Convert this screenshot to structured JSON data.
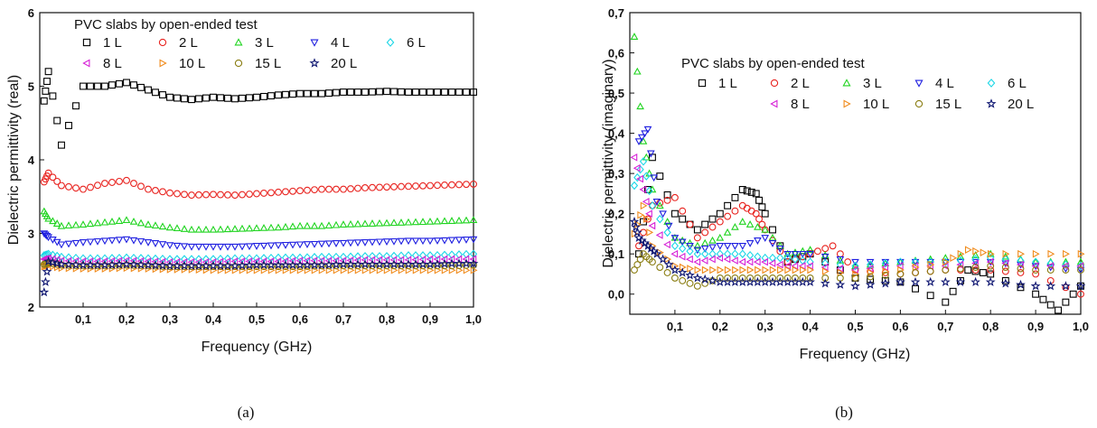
{
  "chart_data": [
    {
      "id": "a",
      "type": "scatter",
      "subfigure_label": "(a)",
      "xlabel": "Frequency (GHz)",
      "ylabel": "Dielectric permittivity (real)",
      "xlim": [
        0.0,
        1.0
      ],
      "ylim": [
        2,
        6
      ],
      "xticks": [
        "0,1",
        "0,2",
        "0,3",
        "0,4",
        "0,5",
        "0,6",
        "0,7",
        "0,8",
        "0,9",
        "1,0"
      ],
      "yticks": [
        "2",
        "3",
        "4",
        "5",
        "6"
      ],
      "legend_title": "PVC slabs by open-ended test",
      "legend_placement": "top-left",
      "series": [
        {
          "name": "1 L",
          "color": "#000000",
          "marker": "square",
          "x": [
            0.01,
            0.02,
            0.05,
            0.1,
            0.15,
            0.2,
            0.25,
            0.3,
            0.35,
            0.4,
            0.45,
            0.5,
            0.55,
            0.6,
            0.65,
            0.7,
            0.75,
            0.8,
            0.85,
            0.9,
            0.95,
            1.0
          ],
          "y": [
            4.8,
            5.2,
            4.2,
            5.0,
            5.0,
            5.05,
            4.95,
            4.85,
            4.82,
            4.85,
            4.83,
            4.85,
            4.88,
            4.9,
            4.9,
            4.92,
            4.92,
            4.93,
            4.92,
            4.92,
            4.92,
            4.92
          ]
        },
        {
          "name": "2 L",
          "color": "#e8231f",
          "marker": "circle",
          "x": [
            0.01,
            0.02,
            0.05,
            0.1,
            0.15,
            0.2,
            0.25,
            0.3,
            0.35,
            0.4,
            0.45,
            0.5,
            0.55,
            0.6,
            0.65,
            0.7,
            0.75,
            0.8,
            0.85,
            0.9,
            0.95,
            1.0
          ],
          "y": [
            3.7,
            3.82,
            3.65,
            3.6,
            3.68,
            3.72,
            3.6,
            3.55,
            3.52,
            3.53,
            3.52,
            3.54,
            3.56,
            3.58,
            3.6,
            3.6,
            3.62,
            3.63,
            3.64,
            3.65,
            3.66,
            3.67
          ]
        },
        {
          "name": "3 L",
          "color": "#1fd41f",
          "marker": "triangle-up",
          "x": [
            0.01,
            0.02,
            0.05,
            0.1,
            0.15,
            0.2,
            0.25,
            0.3,
            0.35,
            0.4,
            0.45,
            0.5,
            0.55,
            0.6,
            0.65,
            0.7,
            0.75,
            0.8,
            0.85,
            0.9,
            0.95,
            1.0
          ],
          "y": [
            3.3,
            3.2,
            3.1,
            3.12,
            3.15,
            3.18,
            3.12,
            3.08,
            3.05,
            3.05,
            3.06,
            3.07,
            3.08,
            3.1,
            3.1,
            3.12,
            3.13,
            3.14,
            3.15,
            3.16,
            3.17,
            3.18
          ]
        },
        {
          "name": "4 L",
          "color": "#1e1ee0",
          "marker": "triangle-down",
          "x": [
            0.01,
            0.02,
            0.05,
            0.1,
            0.15,
            0.2,
            0.25,
            0.3,
            0.35,
            0.4,
            0.45,
            0.5,
            0.55,
            0.6,
            0.65,
            0.7,
            0.75,
            0.8,
            0.85,
            0.9,
            0.95,
            1.0
          ],
          "y": [
            3.0,
            2.95,
            2.85,
            2.88,
            2.9,
            2.92,
            2.88,
            2.84,
            2.82,
            2.82,
            2.82,
            2.83,
            2.84,
            2.85,
            2.86,
            2.87,
            2.88,
            2.89,
            2.9,
            2.9,
            2.91,
            2.92
          ]
        },
        {
          "name": "6 L",
          "color": "#19d6e6",
          "marker": "diamond",
          "x": [
            0.01,
            0.02,
            0.05,
            0.1,
            0.15,
            0.2,
            0.25,
            0.3,
            0.35,
            0.4,
            0.45,
            0.5,
            0.55,
            0.6,
            0.65,
            0.7,
            0.75,
            0.8,
            0.85,
            0.9,
            0.95,
            1.0
          ],
          "y": [
            2.7,
            2.72,
            2.68,
            2.66,
            2.66,
            2.67,
            2.66,
            2.65,
            2.65,
            2.65,
            2.66,
            2.66,
            2.67,
            2.67,
            2.68,
            2.68,
            2.69,
            2.69,
            2.7,
            2.7,
            2.71,
            2.72
          ]
        },
        {
          "name": "8 L",
          "color": "#d61fd6",
          "marker": "triangle-left",
          "x": [
            0.01,
            0.02,
            0.05,
            0.1,
            0.15,
            0.2,
            0.25,
            0.3,
            0.35,
            0.4,
            0.45,
            0.5,
            0.55,
            0.6,
            0.65,
            0.7,
            0.75,
            0.8,
            0.85,
            0.9,
            0.95,
            1.0
          ],
          "y": [
            2.65,
            2.66,
            2.63,
            2.62,
            2.62,
            2.63,
            2.62,
            2.61,
            2.61,
            2.61,
            2.62,
            2.62,
            2.62,
            2.63,
            2.63,
            2.63,
            2.64,
            2.64,
            2.64,
            2.65,
            2.65,
            2.65
          ]
        },
        {
          "name": "10 L",
          "color": "#f08a1a",
          "marker": "triangle-right",
          "x": [
            0.01,
            0.02,
            0.05,
            0.1,
            0.15,
            0.2,
            0.25,
            0.3,
            0.35,
            0.4,
            0.45,
            0.5,
            0.55,
            0.6,
            0.65,
            0.7,
            0.75,
            0.8,
            0.85,
            0.9,
            0.95,
            1.0
          ],
          "y": [
            2.55,
            2.56,
            2.53,
            2.52,
            2.52,
            2.53,
            2.52,
            2.51,
            2.51,
            2.5,
            2.5,
            2.5,
            2.5,
            2.5,
            2.5,
            2.5,
            2.5,
            2.5,
            2.5,
            2.5,
            2.5,
            2.5
          ]
        },
        {
          "name": "15 L",
          "color": "#8a7d12",
          "marker": "circle",
          "x": [
            0.01,
            0.02,
            0.05,
            0.1,
            0.15,
            0.2,
            0.25,
            0.3,
            0.35,
            0.4,
            0.45,
            0.5,
            0.55,
            0.6,
            0.65,
            0.7,
            0.75,
            0.8,
            0.85,
            0.9,
            0.95,
            1.0
          ],
          "y": [
            2.58,
            2.6,
            2.57,
            2.56,
            2.56,
            2.57,
            2.56,
            2.55,
            2.55,
            2.55,
            2.55,
            2.55,
            2.55,
            2.55,
            2.56,
            2.56,
            2.56,
            2.56,
            2.56,
            2.56,
            2.56,
            2.57
          ]
        },
        {
          "name": "20 L",
          "color": "#0c1470",
          "marker": "star",
          "x": [
            0.01,
            0.02,
            0.05,
            0.1,
            0.15,
            0.2,
            0.25,
            0.3,
            0.35,
            0.4,
            0.45,
            0.5,
            0.55,
            0.6,
            0.65,
            0.7,
            0.75,
            0.8,
            0.85,
            0.9,
            0.95,
            1.0
          ],
          "y": [
            2.2,
            2.62,
            2.58,
            2.57,
            2.57,
            2.58,
            2.57,
            2.56,
            2.56,
            2.56,
            2.56,
            2.57,
            2.57,
            2.57,
            2.57,
            2.58,
            2.58,
            2.58,
            2.58,
            2.58,
            2.59,
            2.59
          ]
        }
      ]
    },
    {
      "id": "b",
      "type": "scatter",
      "subfigure_label": "(b)",
      "xlabel": "Frequency (GHz)",
      "ylabel": "Dielectric permittivity (imaginary)",
      "xlim": [
        0.0,
        1.0
      ],
      "ylim": [
        -0.05,
        0.7
      ],
      "xticks": [
        "0,1",
        "0,2",
        "0,3",
        "0,4",
        "0,5",
        "0,6",
        "0,7",
        "0,8",
        "0,9",
        "1,0"
      ],
      "yticks": [
        "0,0",
        "0,1",
        "0,2",
        "0,3",
        "0,4",
        "0,5",
        "0,6",
        "0,7"
      ],
      "legend_title": "PVC slabs by open-ended test",
      "legend_placement": "top-right",
      "series": [
        {
          "name": "1 L",
          "color": "#000000",
          "marker": "square",
          "x": [
            0.02,
            0.05,
            0.1,
            0.15,
            0.2,
            0.25,
            0.28,
            0.3,
            0.35,
            0.4,
            0.5,
            0.6,
            0.7,
            0.75,
            0.8,
            0.9,
            0.95,
            1.0
          ],
          "y": [
            0.1,
            0.34,
            0.2,
            0.16,
            0.2,
            0.26,
            0.25,
            0.2,
            0.08,
            0.1,
            0.04,
            0.03,
            -0.02,
            0.06,
            0.05,
            0.0,
            -0.04,
            0.02
          ]
        },
        {
          "name": "2 L",
          "color": "#e8231f",
          "marker": "circle",
          "x": [
            0.02,
            0.05,
            0.1,
            0.15,
            0.2,
            0.25,
            0.28,
            0.3,
            0.35,
            0.4,
            0.45,
            0.5,
            0.6,
            0.7,
            0.8,
            0.9,
            1.0
          ],
          "y": [
            0.12,
            0.22,
            0.24,
            0.14,
            0.18,
            0.22,
            0.2,
            0.16,
            0.08,
            0.1,
            0.12,
            0.06,
            0.05,
            0.06,
            0.06,
            0.05,
            0.0
          ]
        },
        {
          "name": "3 L",
          "color": "#1fd41f",
          "marker": "triangle-up",
          "x": [
            0.01,
            0.03,
            0.05,
            0.1,
            0.15,
            0.2,
            0.25,
            0.3,
            0.35,
            0.4,
            0.5,
            0.6,
            0.7,
            0.8,
            0.9,
            1.0
          ],
          "y": [
            0.64,
            0.38,
            0.26,
            0.14,
            0.12,
            0.14,
            0.18,
            0.16,
            0.1,
            0.11,
            0.07,
            0.08,
            0.09,
            0.1,
            0.08,
            0.08
          ]
        },
        {
          "name": "4 L",
          "color": "#1e1ee0",
          "marker": "triangle-down",
          "x": [
            0.02,
            0.04,
            0.06,
            0.1,
            0.15,
            0.2,
            0.25,
            0.3,
            0.35,
            0.4,
            0.5,
            0.6,
            0.7,
            0.8,
            0.9,
            1.0
          ],
          "y": [
            0.38,
            0.41,
            0.23,
            0.14,
            0.11,
            0.12,
            0.12,
            0.14,
            0.1,
            0.1,
            0.08,
            0.08,
            0.08,
            0.08,
            0.07,
            0.06
          ]
        },
        {
          "name": "6 L",
          "color": "#19d6e6",
          "marker": "diamond",
          "x": [
            0.01,
            0.03,
            0.05,
            0.1,
            0.15,
            0.2,
            0.25,
            0.3,
            0.35,
            0.4,
            0.5,
            0.6,
            0.7,
            0.8,
            0.9,
            1.0
          ],
          "y": [
            0.27,
            0.33,
            0.22,
            0.12,
            0.1,
            0.1,
            0.1,
            0.09,
            0.09,
            0.08,
            0.07,
            0.08,
            0.08,
            0.09,
            0.08,
            0.07
          ]
        },
        {
          "name": "8 L",
          "color": "#d61fd6",
          "marker": "triangle-left",
          "x": [
            0.01,
            0.03,
            0.05,
            0.1,
            0.15,
            0.2,
            0.25,
            0.3,
            0.35,
            0.4,
            0.5,
            0.6,
            0.7,
            0.8,
            0.9,
            1.0
          ],
          "y": [
            0.34,
            0.26,
            0.17,
            0.1,
            0.08,
            0.09,
            0.08,
            0.08,
            0.07,
            0.07,
            0.06,
            0.07,
            0.07,
            0.08,
            0.07,
            0.07
          ]
        },
        {
          "name": "10 L",
          "color": "#f08a1a",
          "marker": "triangle-right",
          "x": [
            0.01,
            0.03,
            0.05,
            0.1,
            0.15,
            0.2,
            0.25,
            0.3,
            0.35,
            0.4,
            0.5,
            0.6,
            0.7,
            0.75,
            0.8,
            0.9,
            1.0
          ],
          "y": [
            0.15,
            0.22,
            0.12,
            0.07,
            0.06,
            0.06,
            0.06,
            0.06,
            0.06,
            0.06,
            0.05,
            0.06,
            0.08,
            0.11,
            0.1,
            0.1,
            0.1
          ]
        },
        {
          "name": "15 L",
          "color": "#8a7d12",
          "marker": "circle",
          "x": [
            0.01,
            0.03,
            0.05,
            0.1,
            0.15,
            0.2,
            0.25,
            0.3,
            0.35,
            0.4,
            0.5,
            0.6,
            0.7,
            0.8,
            0.9,
            1.0
          ],
          "y": [
            0.06,
            0.1,
            0.08,
            0.04,
            0.02,
            0.04,
            0.04,
            0.04,
            0.04,
            0.04,
            0.04,
            0.05,
            0.06,
            0.07,
            0.06,
            0.06
          ]
        },
        {
          "name": "20 L",
          "color": "#0c1470",
          "marker": "star",
          "x": [
            0.01,
            0.02,
            0.04,
            0.06,
            0.1,
            0.15,
            0.2,
            0.25,
            0.3,
            0.35,
            0.4,
            0.5,
            0.6,
            0.7,
            0.8,
            0.9,
            1.0
          ],
          "y": [
            0.18,
            0.14,
            0.12,
            0.1,
            0.06,
            0.04,
            0.03,
            0.03,
            0.03,
            0.03,
            0.03,
            0.02,
            0.03,
            0.03,
            0.03,
            0.02,
            0.02
          ]
        }
      ]
    }
  ]
}
